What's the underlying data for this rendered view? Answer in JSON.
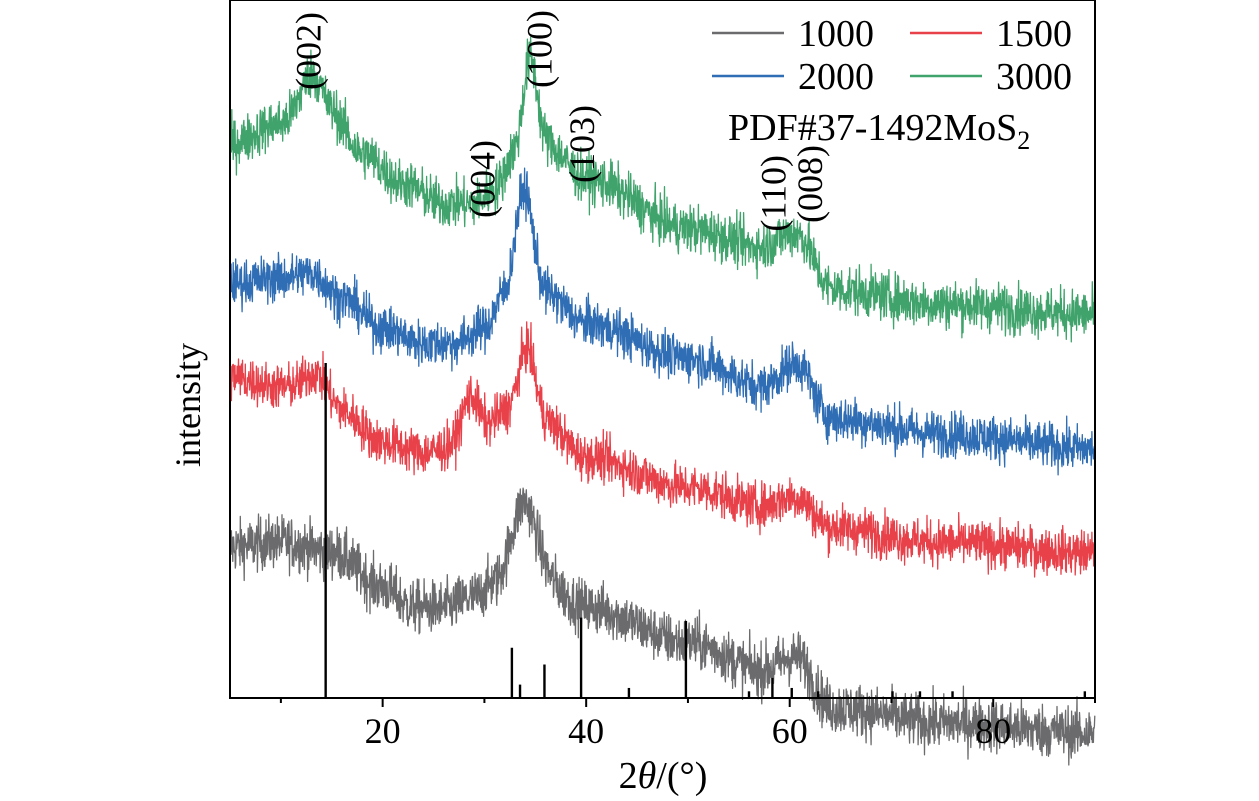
{
  "chart_data": {
    "type": "line",
    "title": "",
    "xlabel": {
      "pre": "2",
      "theta": "θ",
      "post": "/(°)"
    },
    "ylabel": "intensity",
    "xlim": [
      5,
      90
    ],
    "ylim": [
      0,
      100
    ],
    "x_ticks": [
      20,
      40,
      60,
      80
    ],
    "x_minor_ticks": [
      10,
      30,
      50,
      70,
      90
    ],
    "y_ticks_shown": false,
    "grid": false,
    "legend": {
      "placement": "top-right",
      "columns": 2
    },
    "series": [
      {
        "name": "1000",
        "color": "#6b6b6d",
        "offset": 13,
        "noise": 3.4,
        "baseline": [
          [
            5,
            52
          ],
          [
            10,
            53
          ],
          [
            15,
            51
          ],
          [
            20,
            44
          ],
          [
            23,
            40
          ],
          [
            26,
            40
          ],
          [
            29,
            42
          ],
          [
            31,
            45
          ],
          [
            33,
            51
          ],
          [
            35,
            47
          ],
          [
            40,
            40
          ],
          [
            50,
            33
          ],
          [
            58,
            27
          ],
          [
            61,
            26
          ],
          [
            64,
            20
          ],
          [
            75,
            17
          ],
          [
            90,
            15
          ]
        ],
        "peaks": [
          [
            34.2,
            12,
            1.0
          ],
          [
            60.5,
            4,
            1.4
          ]
        ]
      },
      {
        "name": "1500",
        "color": "#e8414a",
        "offset": 46,
        "noise": 2.9,
        "baseline": [
          [
            5,
            40
          ],
          [
            10,
            38
          ],
          [
            13,
            37
          ],
          [
            16,
            33
          ],
          [
            20,
            27
          ],
          [
            24,
            25
          ],
          [
            27,
            26
          ],
          [
            30,
            30
          ],
          [
            32,
            33
          ],
          [
            34,
            34
          ],
          [
            36,
            31
          ],
          [
            40,
            24
          ],
          [
            50,
            18
          ],
          [
            58,
            14
          ],
          [
            61,
            13
          ],
          [
            64,
            10
          ],
          [
            75,
            7
          ],
          [
            90,
            5
          ]
        ],
        "peaks": [
          [
            28.5,
            8,
            0.8
          ],
          [
            34.2,
            12,
            0.8
          ],
          [
            13.5,
            4,
            1.2
          ],
          [
            60.5,
            3,
            1.4
          ]
        ]
      },
      {
        "name": "2000",
        "color": "#2f6db4",
        "offset": 58,
        "noise": 2.9,
        "baseline": [
          [
            5,
            42
          ],
          [
            10,
            43
          ],
          [
            13,
            44
          ],
          [
            16,
            39
          ],
          [
            20,
            33
          ],
          [
            24,
            30
          ],
          [
            27,
            30
          ],
          [
            30,
            33
          ],
          [
            32,
            40
          ],
          [
            33.5,
            46
          ],
          [
            36,
            40
          ],
          [
            40,
            34
          ],
          [
            50,
            27
          ],
          [
            58,
            21
          ],
          [
            61,
            21
          ],
          [
            64,
            15
          ],
          [
            75,
            12
          ],
          [
            90,
            9
          ]
        ],
        "peaks": [
          [
            34.0,
            15,
            0.8
          ],
          [
            60.5,
            5,
            1.4
          ]
        ]
      },
      {
        "name": "3000",
        "color": "#3fa36b",
        "offset": 78,
        "noise": 3.1,
        "baseline": [
          [
            5,
            42
          ],
          [
            10,
            46
          ],
          [
            13,
            52
          ],
          [
            15,
            48
          ],
          [
            18,
            40
          ],
          [
            22,
            34
          ],
          [
            26,
            30
          ],
          [
            29,
            30
          ],
          [
            31,
            33
          ],
          [
            33,
            40
          ],
          [
            34.5,
            48
          ],
          [
            36,
            42
          ],
          [
            40,
            35
          ],
          [
            50,
            25
          ],
          [
            58,
            21
          ],
          [
            61,
            20
          ],
          [
            64,
            13
          ],
          [
            75,
            10
          ],
          [
            90,
            8
          ]
        ],
        "peaks": [
          [
            34.5,
            11,
            0.7
          ],
          [
            13.2,
            4,
            1.0
          ],
          [
            60.5,
            4,
            1.5
          ]
        ]
      }
    ],
    "reference": {
      "name": "PDF#37-1492MoS",
      "subscript": "2",
      "color": "#000000",
      "lines": [
        [
          14.4,
          100
        ],
        [
          32.7,
          15
        ],
        [
          33.5,
          4
        ],
        [
          35.9,
          10
        ],
        [
          39.5,
          24
        ],
        [
          44.2,
          3
        ],
        [
          49.8,
          23
        ],
        [
          56.0,
          2
        ],
        [
          58.3,
          6
        ],
        [
          60.2,
          3
        ],
        [
          62.8,
          2
        ],
        [
          70.1,
          2
        ],
        [
          72.8,
          2
        ],
        [
          76.0,
          2
        ],
        [
          89.0,
          2
        ]
      ]
    },
    "annotations": [
      {
        "label": "(002)",
        "x": 12.7
      },
      {
        "label": "(004)",
        "x": 29.8
      },
      {
        "label": "(100)",
        "x": 35.4
      },
      {
        "label": "(103)",
        "x": 39.6
      },
      {
        "label": "(110)",
        "x": 58.4
      },
      {
        "label": "(008)",
        "x": 62.0
      }
    ]
  }
}
